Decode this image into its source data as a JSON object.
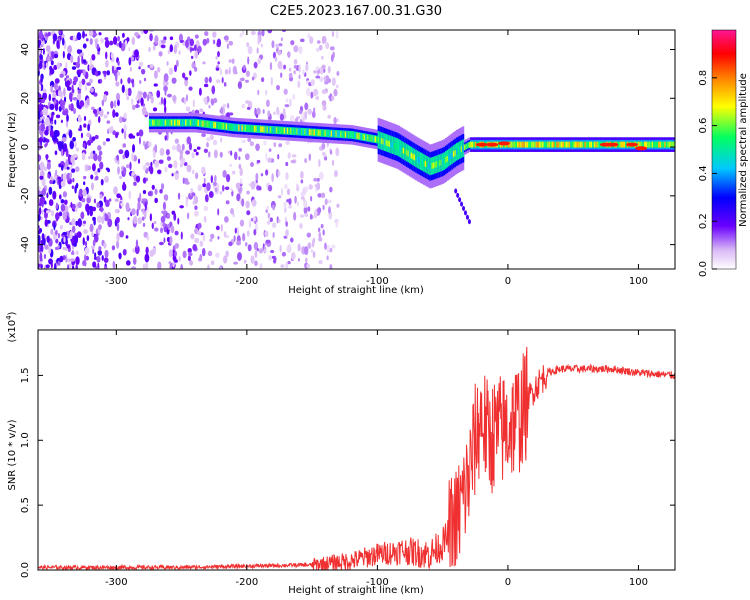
{
  "title": "C2E5.2023.167.00.31.G30",
  "chart_data": [
    {
      "type": "heatmap",
      "xlabel": "Height of straight line (km)",
      "ylabel": "Frequency (Hz)",
      "xlim": [
        -360,
        128
      ],
      "ylim": [
        -50,
        48
      ],
      "xticks": [
        -300,
        -200,
        -100,
        0,
        100
      ],
      "yticks": [
        -40,
        -20,
        0,
        20,
        40
      ],
      "colorbar": {
        "label": "Normalized spectral amplitude",
        "range": [
          0.0,
          1.0
        ],
        "ticks": [
          0.0,
          0.2,
          0.4,
          0.6,
          0.8
        ]
      },
      "ridge": {
        "x": [
          -270,
          -240,
          -210,
          -180,
          -150,
          -120,
          -100,
          -85,
          -70,
          -60,
          -50,
          -40,
          -30,
          -20,
          0,
          50,
          100,
          128
        ],
        "y": [
          10,
          10,
          8,
          7,
          6,
          5,
          3,
          0,
          -5,
          -8,
          -6,
          -2,
          1,
          1,
          1,
          1,
          1,
          1
        ]
      },
      "noise_region": {
        "x_from": -360,
        "x_to": -150,
        "density": "high"
      }
    },
    {
      "type": "line",
      "xlabel": "Height of straight line (km)",
      "ylabel": "SNR (10 * v/v)",
      "y_scale_label": "(x10",
      "y_scale_exp": "4",
      "y_scale_close": ")",
      "xlim": [
        -360,
        128
      ],
      "ylim": [
        0,
        1.85
      ],
      "xticks": [
        -300,
        -200,
        -100,
        0,
        100
      ],
      "yticks": [
        "0.0",
        "0.5",
        "1.0",
        "1.5"
      ],
      "series": [
        {
          "color": "#f03030",
          "x": [
            -360,
            -300,
            -250,
            -200,
            -150,
            -120,
            -100,
            -80,
            -60,
            -50,
            -40,
            -30,
            -25,
            -20,
            -15,
            -10,
            0,
            10,
            20,
            30,
            40,
            60,
            80,
            100,
            128
          ],
          "y": [
            0.02,
            0.02,
            0.02,
            0.03,
            0.04,
            0.07,
            0.12,
            0.15,
            0.12,
            0.2,
            0.35,
            0.7,
            1.0,
            1.2,
            1.0,
            1.05,
            1.1,
            1.2,
            1.4,
            1.52,
            1.55,
            1.55,
            1.55,
            1.52,
            1.5
          ]
        }
      ]
    }
  ]
}
